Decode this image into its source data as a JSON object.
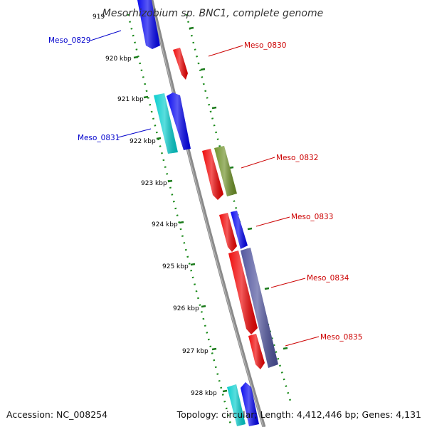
{
  "title": "Mesorhizobium sp. BNC1, complete genome",
  "footer": {
    "accession": "Accession: NC_008254",
    "summary": "Topology: circular; Length: 4,412,446 bp; Genes: 4,131"
  },
  "ticks": [
    "919",
    "920 kbp",
    "921 kbp",
    "922 kbp",
    "923 kbp",
    "924 kbp",
    "925 kbp",
    "926 kbp",
    "927 kbp",
    "928 kbp"
  ],
  "genes": [
    {
      "id": "g0829",
      "label": "Meso_0829",
      "strand": "-",
      "color": "#0000ee",
      "labelColor": "#0000cc"
    },
    {
      "id": "g0830",
      "label": "Meso_0830",
      "strand": "+",
      "color": "#ee0000",
      "labelColor": "#cc0000"
    },
    {
      "id": "g0831",
      "label": "Meso_0831",
      "strand": "-",
      "color": "#0000ee",
      "labelColor": "#0000cc"
    },
    {
      "id": "g0831c",
      "label": "",
      "strand": "-",
      "color": "#00cccc"
    },
    {
      "id": "g0832",
      "label": "Meso_0832",
      "strand": "+",
      "color": "#ee0000",
      "labelColor": "#cc0000"
    },
    {
      "id": "g0832o",
      "label": "",
      "strand": "+",
      "color": "#6b8e23"
    },
    {
      "id": "g0833",
      "label": "Meso_0833",
      "strand": "+",
      "color": "#ee0000",
      "labelColor": "#cc0000"
    },
    {
      "id": "g0833b",
      "label": "",
      "strand": "+",
      "color": "#0000ee"
    },
    {
      "id": "g0834",
      "label": "Meso_0834",
      "strand": "+",
      "color": "#ee0000",
      "labelColor": "#cc0000"
    },
    {
      "id": "g0834p",
      "label": "",
      "strand": "+",
      "color": "#4b4f9a"
    },
    {
      "id": "g0835",
      "label": "Meso_0835",
      "strand": "+",
      "color": "#ee0000",
      "labelColor": "#cc0000"
    },
    {
      "id": "g0836c",
      "label": "",
      "strand": "-",
      "color": "#00cccc"
    },
    {
      "id": "g0836b",
      "label": "",
      "strand": "-",
      "color": "#0000ee"
    }
  ]
}
